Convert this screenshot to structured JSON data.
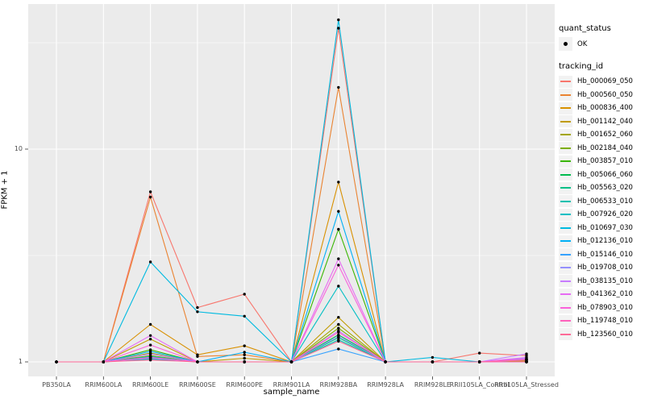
{
  "chart_data": {
    "type": "line",
    "title": "",
    "xlabel": "sample_name",
    "ylabel": "FPKM + 1",
    "yscale": "log10",
    "ylim": [
      0.93,
      48
    ],
    "grid": true,
    "legend_position": "right",
    "yticks": [
      {
        "label": "1",
        "value": 1
      },
      {
        "label": "10",
        "value": 10
      }
    ],
    "minor_ytick_values": [
      3.162,
      31.62
    ],
    "categories": [
      "PB350LA",
      "RRIM600LA",
      "RRIM600LE",
      "RRIM600SE",
      "RRIM600PE",
      "RRIM901LA",
      "RRIM928BA",
      "RRIM928LA",
      "RRIM928LE",
      "RRII105LA_Control",
      "RRII105LA_Stressed"
    ],
    "legend": {
      "quant_status_title": "quant_status",
      "quant_status_items": [
        "OK"
      ],
      "tracking_id_title": "tracking_id"
    },
    "colors": {
      "panel_bg": "#EBEBEB",
      "grid": "#FFFFFF",
      "point": "#000000",
      "legend_key_bg": "#F2F2F2",
      "tick": "#333333",
      "tick_label": "#4D4D4D"
    },
    "series": [
      {
        "name": "Hb_000069_050",
        "color": "#F8766D",
        "values": [
          1,
          1,
          6.3,
          1.8,
          2.08,
          1,
          37,
          1,
          1,
          1.1,
          1.07
        ]
      },
      {
        "name": "Hb_000560_050",
        "color": "#EA8331",
        "values": [
          1,
          1,
          5.95,
          1.06,
          1.08,
          1,
          19.5,
          1,
          1,
          1,
          1.02
        ]
      },
      {
        "name": "Hb_000836_400",
        "color": "#D89000",
        "values": [
          1,
          1,
          1.5,
          1.08,
          1.19,
          1,
          7.0,
          1,
          1,
          1,
          1.02
        ]
      },
      {
        "name": "Hb_001142_040",
        "color": "#C09B00",
        "values": [
          1,
          1,
          1.28,
          1,
          1.04,
          1,
          1.62,
          1,
          1,
          1,
          1.01
        ]
      },
      {
        "name": "Hb_001652_060",
        "color": "#A3A500",
        "values": [
          1,
          1,
          1.1,
          1,
          1,
          1,
          1.5,
          1,
          1,
          1,
          1
        ]
      },
      {
        "name": "Hb_002184_040",
        "color": "#7CAE00",
        "values": [
          1,
          1,
          1.07,
          1,
          1,
          1,
          1.44,
          1,
          1,
          1,
          1
        ]
      },
      {
        "name": "Hb_003857_010",
        "color": "#39B600",
        "values": [
          1,
          1,
          1.14,
          1,
          1,
          1,
          4.2,
          1,
          1,
          1,
          1
        ]
      },
      {
        "name": "Hb_005066_060",
        "color": "#00BB4E",
        "values": [
          1,
          1,
          1.05,
          1,
          1,
          1,
          1.34,
          1,
          1,
          1,
          1
        ]
      },
      {
        "name": "Hb_005563_020",
        "color": "#00C087",
        "values": [
          1,
          1,
          1.04,
          1,
          1,
          1,
          1.3,
          1,
          1,
          1,
          1
        ]
      },
      {
        "name": "Hb_006533_010",
        "color": "#00C0AF",
        "values": [
          1,
          1,
          1.03,
          1,
          1,
          1,
          1.27,
          1,
          1,
          1,
          1
        ]
      },
      {
        "name": "Hb_007926_020",
        "color": "#00BFC4",
        "values": [
          1,
          1,
          1.06,
          1,
          1,
          1,
          2.27,
          1,
          1,
          1,
          1
        ]
      },
      {
        "name": "Hb_010697_030",
        "color": "#00BAE0",
        "values": [
          1,
          1,
          2.95,
          1.72,
          1.64,
          1,
          40.5,
          1,
          1.05,
          1,
          1.02
        ]
      },
      {
        "name": "Hb_012136_010",
        "color": "#00B0F6",
        "values": [
          1,
          1,
          1.12,
          1,
          1.11,
          1,
          5.1,
          1,
          1,
          1,
          1.03
        ]
      },
      {
        "name": "Hb_015146_010",
        "color": "#35A2FF",
        "values": [
          1,
          1,
          1.05,
          1,
          1,
          1,
          1.15,
          1,
          1,
          1,
          1
        ]
      },
      {
        "name": "Hb_019708_010",
        "color": "#9590FF",
        "values": [
          1,
          1,
          1.04,
          1,
          1,
          1,
          1.32,
          1,
          1,
          1,
          1.04
        ]
      },
      {
        "name": "Hb_038135_010",
        "color": "#C77CFF",
        "values": [
          1,
          1,
          1.09,
          1,
          1,
          1,
          1.4,
          1,
          1,
          1,
          1.09
        ]
      },
      {
        "name": "Hb_041362_010",
        "color": "#E76BF3",
        "values": [
          1,
          1,
          1.33,
          1,
          1,
          1,
          3.05,
          1,
          1,
          1,
          1.05
        ]
      },
      {
        "name": "Hb_078903_010",
        "color": "#FA62DB",
        "values": [
          1,
          1,
          1.2,
          1,
          1,
          1,
          2.85,
          1,
          1,
          1,
          1.03
        ]
      },
      {
        "name": "Hb_119748_010",
        "color": "#FF62BC",
        "values": [
          1,
          1,
          1.05,
          1,
          1,
          1,
          1.38,
          1,
          1,
          1,
          1
        ]
      },
      {
        "name": "Hb_123560_010",
        "color": "#FF6A98",
        "values": [
          1,
          1,
          1.02,
          1,
          1,
          1,
          1.25,
          1,
          1,
          1,
          1.02
        ]
      }
    ]
  }
}
